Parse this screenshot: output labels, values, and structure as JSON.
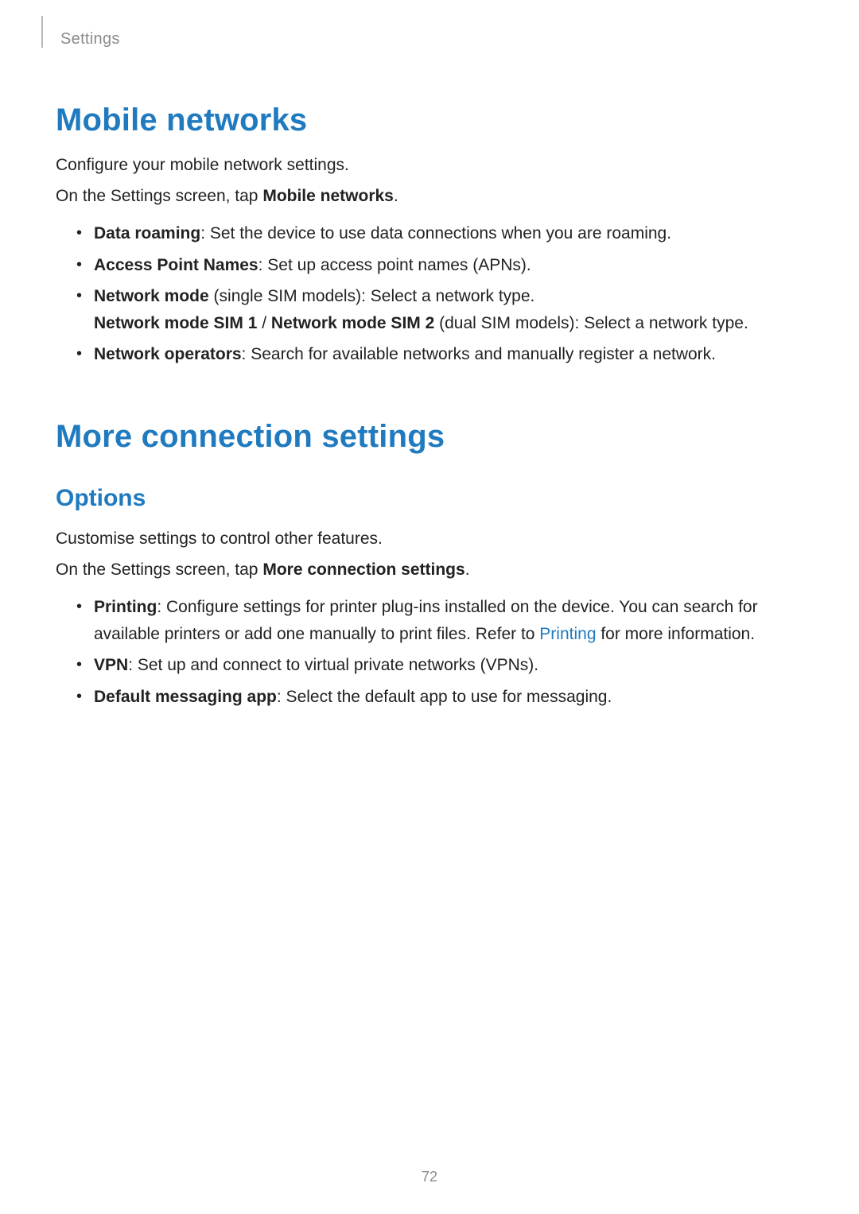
{
  "colors": {
    "heading_blue": "#1f7abf",
    "body_text": "#222222",
    "muted_text": "#8a8a8a",
    "rule_gray": "#b9b9b9",
    "background": "#ffffff"
  },
  "typography": {
    "breadcrumb_fontsize_pt": 15,
    "h1_fontsize_pt": 30,
    "h2_fontsize_pt": 22,
    "body_fontsize_pt": 16,
    "page_number_fontsize_pt": 14,
    "font_family": "Segoe UI / Helvetica Neue / Arial"
  },
  "header": {
    "breadcrumb": "Settings"
  },
  "sections": {
    "mobile_networks": {
      "title": "Mobile networks",
      "intro1": "Configure your mobile network settings.",
      "intro2_prefix": "On the Settings screen, tap ",
      "intro2_bold": "Mobile networks",
      "intro2_suffix": ".",
      "items": {
        "data_roaming": {
          "label": "Data roaming",
          "desc": ": Set the device to use data connections when you are roaming."
        },
        "apn": {
          "label": "Access Point Names",
          "desc": ": Set up access point names (APNs)."
        },
        "network_mode": {
          "label": "Network mode",
          "desc1": " (single SIM models): Select a network type.",
          "sim1_label": "Network mode SIM 1",
          "separator": " / ",
          "sim2_label": "Network mode SIM 2",
          "desc2": " (dual SIM models): Select a network type."
        },
        "network_operators": {
          "label": "Network operators",
          "desc": ": Search for available networks and manually register a network."
        }
      }
    },
    "more_connection": {
      "title": "More connection settings",
      "subheading": "Options",
      "intro1": "Customise settings to control other features.",
      "intro2_prefix": "On the Settings screen, tap ",
      "intro2_bold": "More connection settings",
      "intro2_suffix": ".",
      "items": {
        "printing": {
          "label": "Printing",
          "desc_pre": ": Configure settings for printer plug-ins installed on the device. You can search for available printers or add one manually to print files. Refer to ",
          "link_text": "Printing",
          "desc_post": " for more information."
        },
        "vpn": {
          "label": "VPN",
          "desc": ": Set up and connect to virtual private networks (VPNs)."
        },
        "default_messaging": {
          "label": "Default messaging app",
          "desc": ": Select the default app to use for messaging."
        }
      }
    }
  },
  "footer": {
    "page_number": "72"
  }
}
